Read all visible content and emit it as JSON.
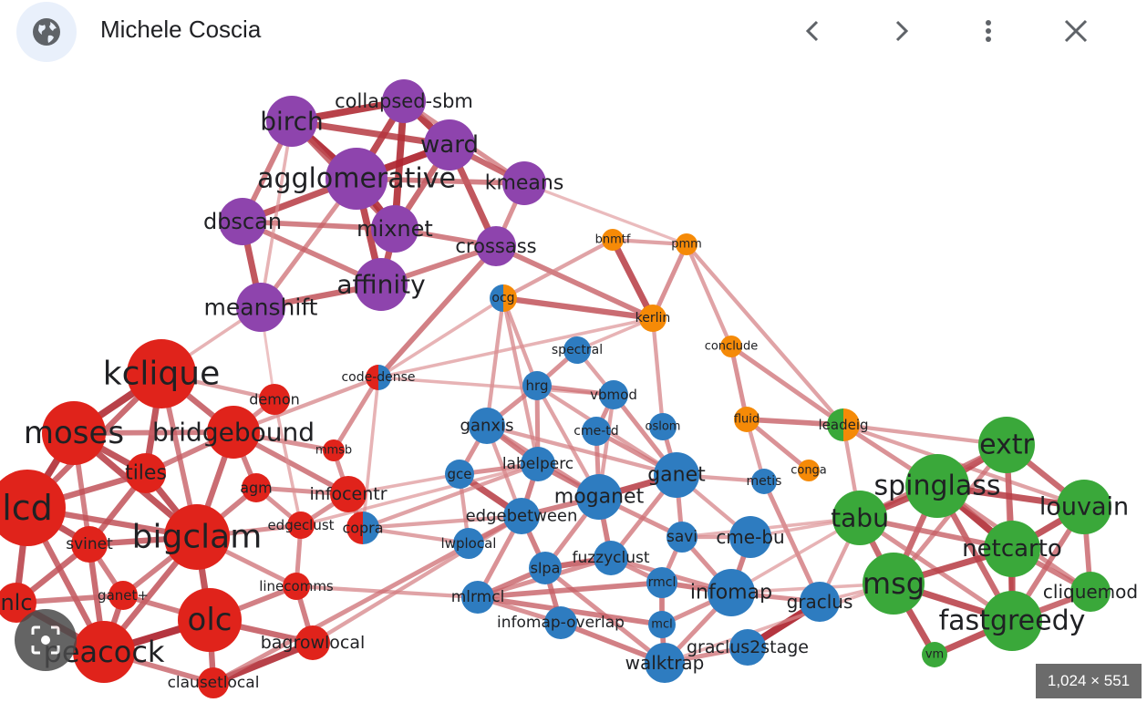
{
  "header": {
    "title": "Michele Coscia",
    "icons": {
      "site": "globe-icon",
      "prev": "chevron-left-icon",
      "next": "chevron-right-icon",
      "more": "more-vertical-icon",
      "close": "close-icon"
    }
  },
  "image_size": "1,024 × 551",
  "colors": {
    "purple": "#8e44ad",
    "orange": "#f58a07",
    "blue": "#2e7cc0",
    "green": "#3aa83a",
    "red": "#e0231b",
    "edge": "#b22a33"
  },
  "graph": {
    "nodes": [
      {
        "id": "birch",
        "group": "purple",
        "label": "birch"
      },
      {
        "id": "collapsed-sbm",
        "group": "purple",
        "label": "collapsed-sbm"
      },
      {
        "id": "ward",
        "group": "purple",
        "label": "ward"
      },
      {
        "id": "agglomerative",
        "group": "purple",
        "label": "agglomerative"
      },
      {
        "id": "kmeans",
        "group": "purple",
        "label": "kmeans"
      },
      {
        "id": "dbscan",
        "group": "purple",
        "label": "dbscan"
      },
      {
        "id": "mixnet",
        "group": "purple",
        "label": "mixnet"
      },
      {
        "id": "crossass",
        "group": "purple",
        "label": "crossass"
      },
      {
        "id": "affinity",
        "group": "purple",
        "label": "affinity"
      },
      {
        "id": "meanshift",
        "group": "purple",
        "label": "meanshift"
      },
      {
        "id": "bnmtf",
        "group": "orange",
        "label": "bnmtf"
      },
      {
        "id": "pmm",
        "group": "orange",
        "label": "pmm"
      },
      {
        "id": "ocg",
        "group": "blue-orange",
        "label": "ocg"
      },
      {
        "id": "kerlin",
        "group": "orange",
        "label": "kerlin"
      },
      {
        "id": "conclude",
        "group": "orange",
        "label": "conclude"
      },
      {
        "id": "spectral",
        "group": "blue",
        "label": "spectral"
      },
      {
        "id": "code-dense",
        "group": "red-blue",
        "label": "code-dense"
      },
      {
        "id": "hrg",
        "group": "blue",
        "label": "hrg"
      },
      {
        "id": "vbmod",
        "group": "blue",
        "label": "vbmod"
      },
      {
        "id": "fluid",
        "group": "orange",
        "label": "fluid"
      },
      {
        "id": "leadeig",
        "group": "green-orange",
        "label": "leadeig"
      },
      {
        "id": "ganxis",
        "group": "blue",
        "label": "ganxis"
      },
      {
        "id": "cme-td",
        "group": "blue",
        "label": "cme-td"
      },
      {
        "id": "oslom",
        "group": "blue",
        "label": "oslom"
      },
      {
        "id": "conga",
        "group": "orange",
        "label": "conga"
      },
      {
        "id": "labelperc",
        "group": "blue",
        "label": "labelperc"
      },
      {
        "id": "gce",
        "group": "blue",
        "label": "gce"
      },
      {
        "id": "ganet",
        "group": "blue",
        "label": "ganet"
      },
      {
        "id": "metis",
        "group": "blue",
        "label": "metis"
      },
      {
        "id": "moganet",
        "group": "blue",
        "label": "moganet"
      },
      {
        "id": "edgebetween",
        "group": "blue",
        "label": "edgebetween"
      },
      {
        "id": "lwplocal",
        "group": "blue",
        "label": "lwplocal"
      },
      {
        "id": "savi",
        "group": "blue",
        "label": "savi"
      },
      {
        "id": "cme-bu",
        "group": "blue",
        "label": "cme-bu"
      },
      {
        "id": "fuzzyclust",
        "group": "blue",
        "label": "fuzzyclust"
      },
      {
        "id": "slpa",
        "group": "blue",
        "label": "slpa"
      },
      {
        "id": "rmcl",
        "group": "blue",
        "label": "rmcl"
      },
      {
        "id": "infomap",
        "group": "blue",
        "label": "infomap"
      },
      {
        "id": "mlrmcl",
        "group": "blue",
        "label": "mlrmcl"
      },
      {
        "id": "graclus",
        "group": "blue",
        "label": "graclus"
      },
      {
        "id": "infomap-overlap",
        "group": "blue",
        "label": "infomap-overlap"
      },
      {
        "id": "mcl",
        "group": "blue",
        "label": "mcl"
      },
      {
        "id": "graclus2stage",
        "group": "blue",
        "label": "graclus2stage"
      },
      {
        "id": "walktrap",
        "group": "blue",
        "label": "walktrap"
      },
      {
        "id": "extr",
        "group": "green",
        "label": "extr"
      },
      {
        "id": "spinglass",
        "group": "green",
        "label": "spinglass"
      },
      {
        "id": "louvain",
        "group": "green",
        "label": "louvain"
      },
      {
        "id": "tabu",
        "group": "green",
        "label": "tabu"
      },
      {
        "id": "netcarto",
        "group": "green",
        "label": "netcarto"
      },
      {
        "id": "msg",
        "group": "green",
        "label": "msg"
      },
      {
        "id": "cliquemod",
        "group": "green",
        "label": "cliquemod"
      },
      {
        "id": "fastgreedy",
        "group": "green",
        "label": "fastgreedy"
      },
      {
        "id": "vm",
        "group": "green",
        "label": "vm"
      },
      {
        "id": "kclique",
        "group": "red",
        "label": "kclique"
      },
      {
        "id": "demon",
        "group": "red",
        "label": "demon"
      },
      {
        "id": "moses",
        "group": "red",
        "label": "moses"
      },
      {
        "id": "bridgebound",
        "group": "red",
        "label": "bridgebound"
      },
      {
        "id": "mmsb",
        "group": "red",
        "label": "mmsb"
      },
      {
        "id": "tiles",
        "group": "red",
        "label": "tiles"
      },
      {
        "id": "agm",
        "group": "red",
        "label": "agm"
      },
      {
        "id": "infocentr",
        "group": "red",
        "label": "infocentr"
      },
      {
        "id": "lcd",
        "group": "red",
        "label": "lcd"
      },
      {
        "id": "edgeclust",
        "group": "red",
        "label": "edgeclust"
      },
      {
        "id": "copra",
        "group": "red-blue",
        "label": "copra"
      },
      {
        "id": "bigclam",
        "group": "red",
        "label": "bigclam"
      },
      {
        "id": "svinet",
        "group": "red",
        "label": "svinet"
      },
      {
        "id": "linecomms",
        "group": "red",
        "label": "linecomms"
      },
      {
        "id": "ganet+",
        "group": "red",
        "label": "ganet+"
      },
      {
        "id": "nlc",
        "group": "red",
        "label": "nlc"
      },
      {
        "id": "olc",
        "group": "red",
        "label": "olc"
      },
      {
        "id": "peacock",
        "group": "red",
        "label": "peacock"
      },
      {
        "id": "bagrowlocal",
        "group": "red",
        "label": "bagrowlocal"
      },
      {
        "id": "clausetlocal",
        "group": "red",
        "label": "clausetlocal"
      }
    ]
  }
}
